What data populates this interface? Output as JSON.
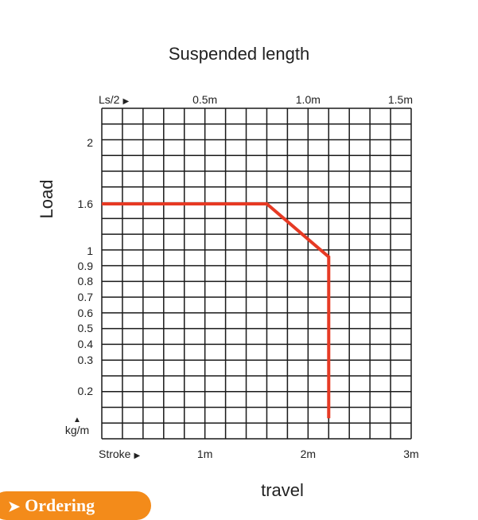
{
  "chart_data": {
    "type": "line",
    "title": "Suspended length",
    "xlabel": "travel",
    "ylabel": "Load",
    "y_unit": "kg/m",
    "bottom_axis": {
      "lead_label": "Stroke",
      "tick_labels": [
        "1m",
        "2m",
        "3m"
      ],
      "ticks": [
        1,
        2,
        3
      ],
      "range": [
        0,
        3
      ]
    },
    "top_axis": {
      "lead_label": "Ls/2",
      "tick_labels": [
        "0.5m",
        "1.0m",
        "1.5m"
      ],
      "ticks": [
        0.5,
        1.0,
        1.5
      ],
      "range": [
        0,
        1.5
      ]
    },
    "y_axis": {
      "tick_labels": [
        "2",
        "1.6",
        "1",
        "0.9",
        "0.8",
        "0.7",
        "0.6",
        "0.5",
        "0.4",
        "0.3",
        "0.2"
      ],
      "ticks": [
        2,
        1.6,
        1,
        0.9,
        0.8,
        0.7,
        0.6,
        0.5,
        0.4,
        0.3,
        0.2
      ]
    },
    "grid": true,
    "series": [
      {
        "color": "#e63a24",
        "points": [
          {
            "x": 0,
            "y": 1.6
          },
          {
            "x": 1.6,
            "y": 1.6
          },
          {
            "x": 2.2,
            "y": 0.96
          },
          {
            "x": 2.2,
            "y": 0.11
          }
        ]
      }
    ]
  },
  "ordering_button": {
    "label": "Ordering"
  }
}
